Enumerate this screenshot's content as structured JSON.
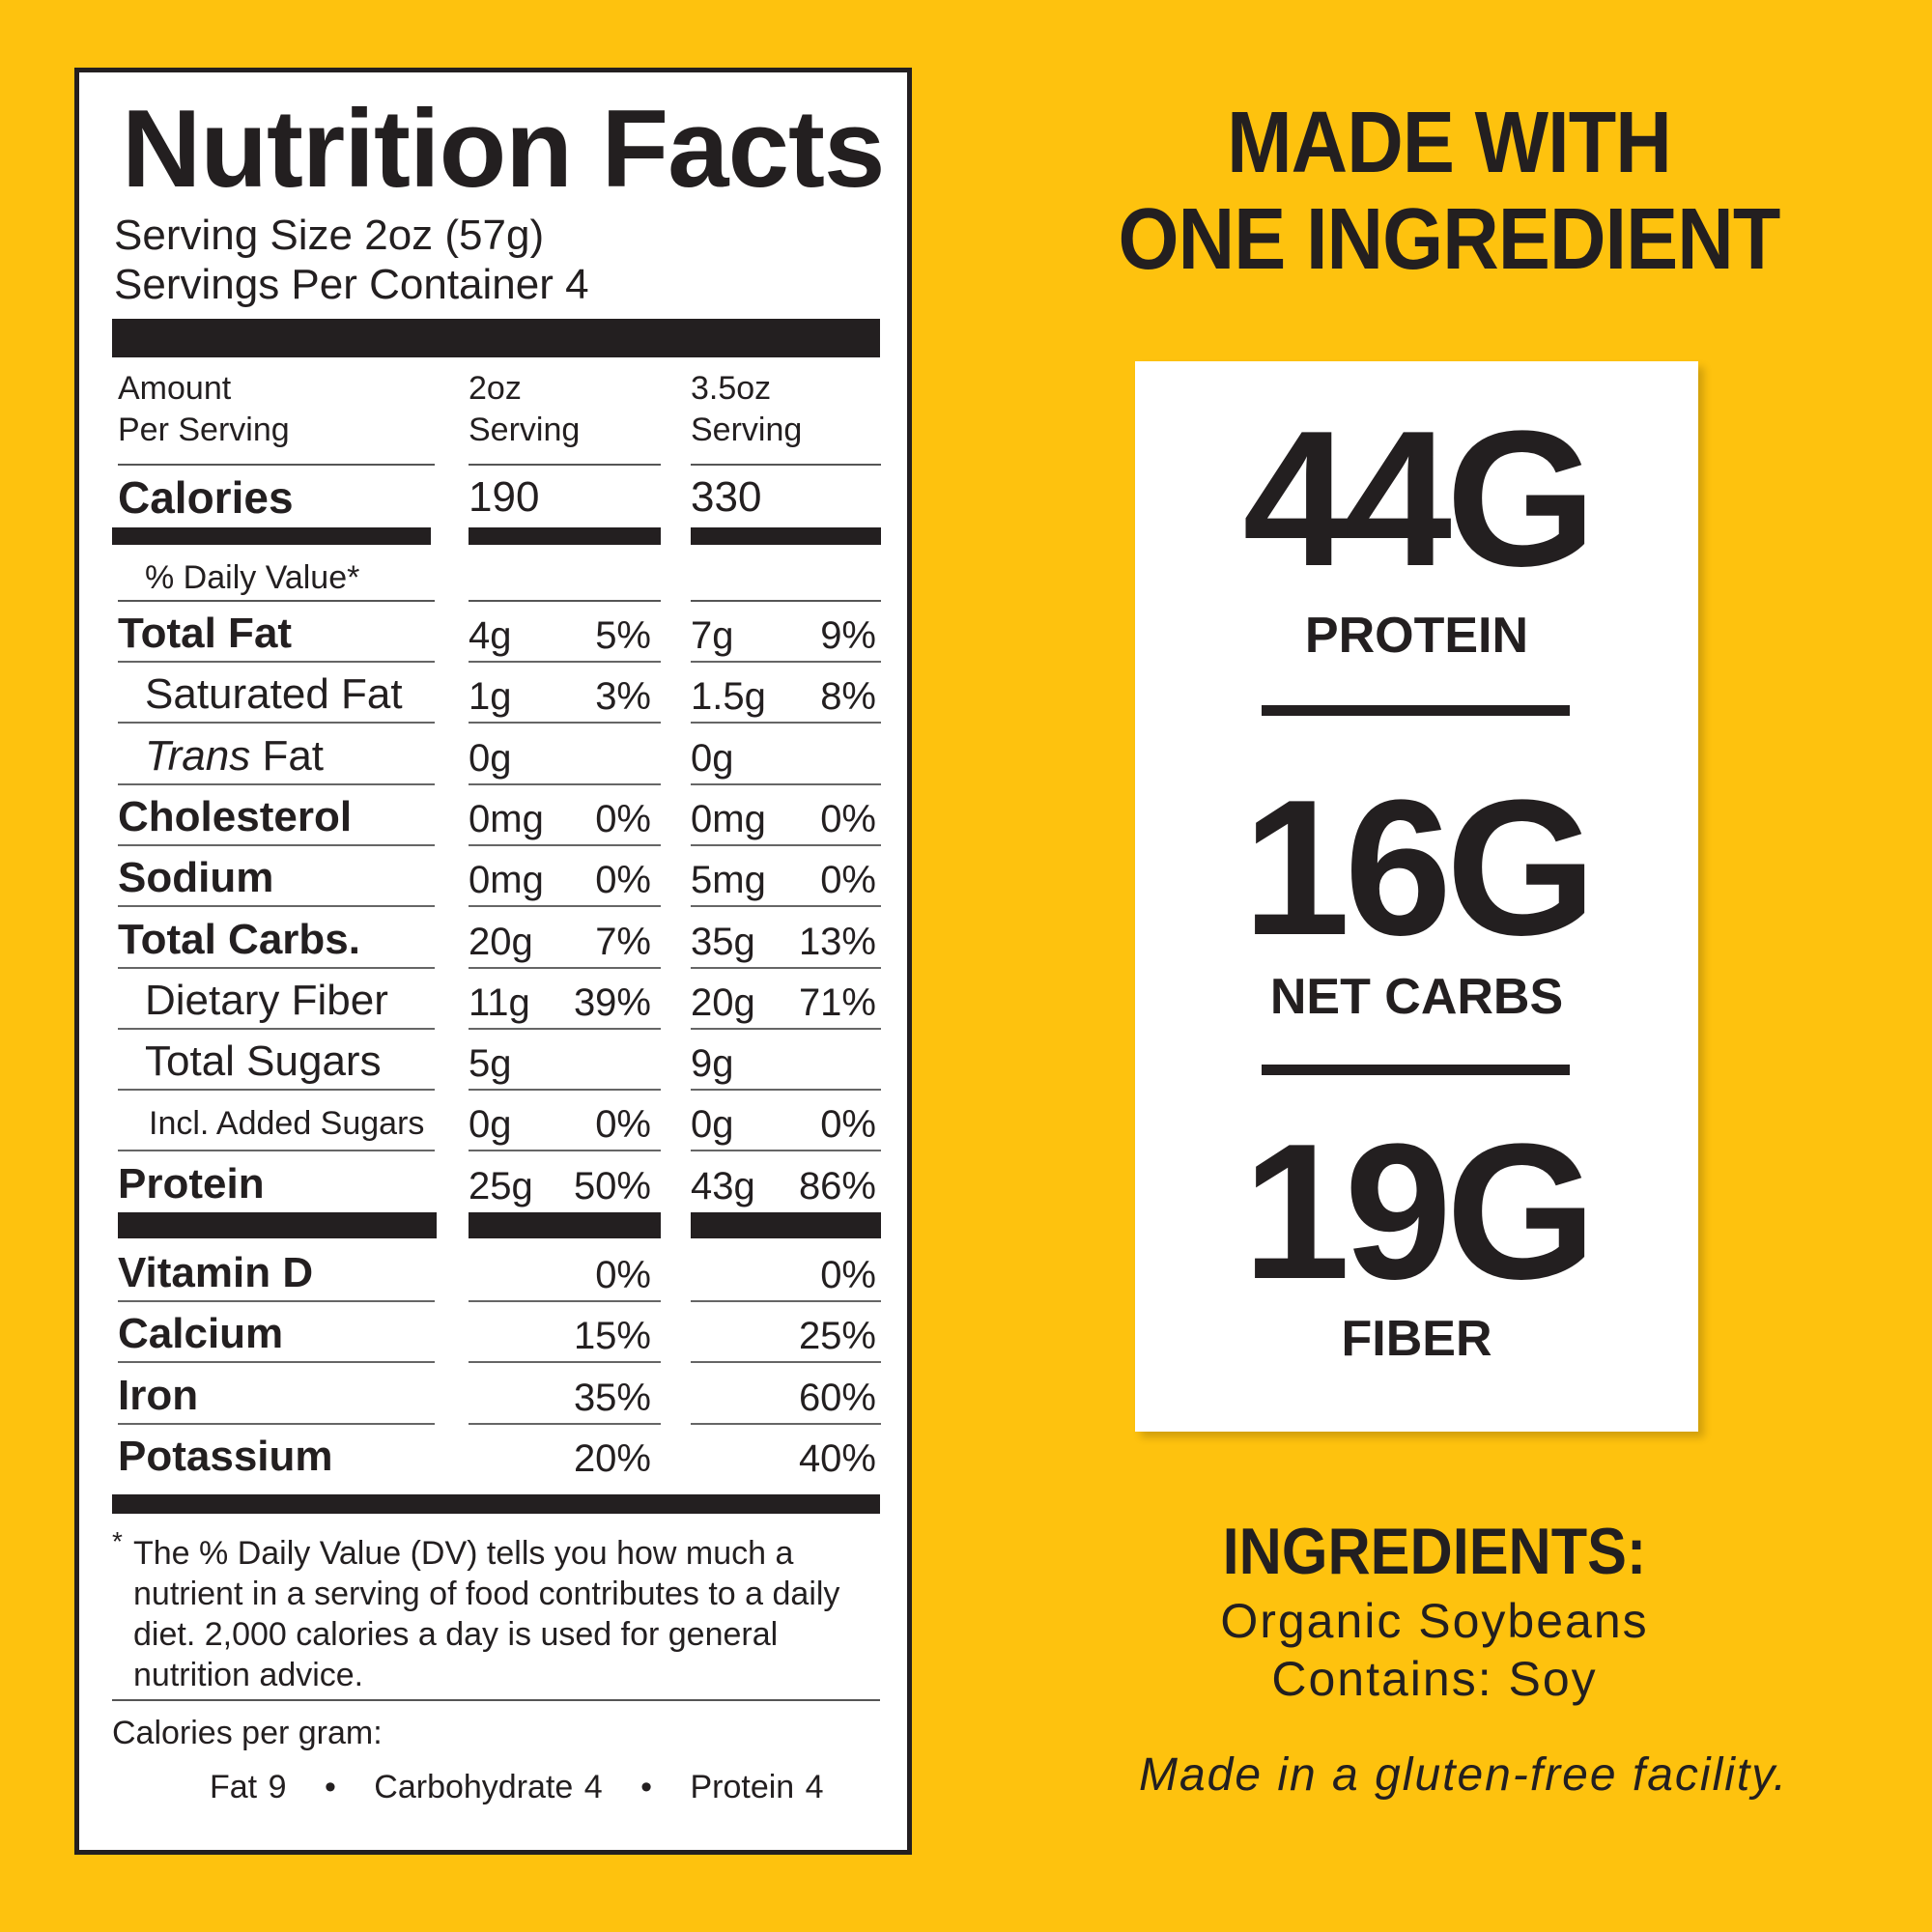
{
  "label": {
    "title": "Nutrition Facts",
    "serving_size": "Serving Size 2oz (57g)",
    "servings_per_container": "Servings Per Container 4",
    "header": {
      "col1_a": "Amount",
      "col1_b": "Per Serving",
      "col2_a": "2oz",
      "col2_b": "Serving",
      "col3_a": "3.5oz",
      "col3_b": "Serving"
    },
    "calories": {
      "label": "Calories",
      "v2": "190",
      "v3": "330"
    },
    "daily_value": "% Daily Value*",
    "rows": [
      {
        "label": "Total Fat",
        "bold": true,
        "indent": 0,
        "a2": "4g",
        "p2": "5%",
        "a3": "7g",
        "p3": "9%"
      },
      {
        "label": "Saturated Fat",
        "bold": false,
        "indent": 1,
        "a2": "1g",
        "p2": "3%",
        "a3": "1.5g",
        "p3": "8%"
      },
      {
        "label": "Trans Fat",
        "bold": false,
        "indent": 1,
        "italic_part": "Trans",
        "a2": "0g",
        "p2": "",
        "a3": "0g",
        "p3": ""
      },
      {
        "label": "Cholesterol",
        "bold": true,
        "indent": 0,
        "a2": "0mg",
        "p2": "0%",
        "a3": "0mg",
        "p3": "0%"
      },
      {
        "label": "Sodium",
        "bold": true,
        "indent": 0,
        "a2": "0mg",
        "p2": "0%",
        "a3": "5mg",
        "p3": "0%"
      },
      {
        "label": "Total Carbs.",
        "bold": true,
        "indent": 0,
        "a2": "20g",
        "p2": "7%",
        "a3": "35g",
        "p3": "13%"
      },
      {
        "label": "Dietary Fiber",
        "bold": false,
        "indent": 1,
        "a2": "11g",
        "p2": "39%",
        "a3": "20g",
        "p3": "71%"
      },
      {
        "label": "Total Sugars",
        "bold": false,
        "indent": 1,
        "a2": "5g",
        "p2": "",
        "a3": "9g",
        "p3": ""
      },
      {
        "label": "Incl. Added Sugars",
        "bold": false,
        "indent": 2,
        "a2": "0g",
        "p2": "0%",
        "a3": "0g",
        "p3": "0%"
      },
      {
        "label": "Protein",
        "bold": true,
        "indent": 0,
        "a2": "25g",
        "p2": "50%",
        "a3": "43g",
        "p3": "86%"
      }
    ],
    "vitamins": [
      {
        "label": "Vitamin D",
        "p2": "0%",
        "p3": "0%"
      },
      {
        "label": "Calcium",
        "p2": "15%",
        "p3": "25%"
      },
      {
        "label": "Iron",
        "p2": "35%",
        "p3": "60%"
      },
      {
        "label": "Potassium",
        "p2": "20%",
        "p3": "40%"
      }
    ],
    "footnote_star": "*",
    "footnote": [
      "The % Daily Value (DV) tells you how much a",
      "nutrient in a serving of food contributes to a daily",
      "diet. 2,000 calories a day is used for general",
      "nutrition advice."
    ],
    "calories_per_gram": "Calories per gram:",
    "cpg": {
      "fat": "Fat 9",
      "carb": "Carbohydrate 4",
      "protein": "Protein 4",
      "bullet": "•"
    }
  },
  "headline": [
    "MADE WITH",
    "ONE INGREDIENT"
  ],
  "highlights": [
    {
      "value": "44G",
      "label": "PROTEIN"
    },
    {
      "value": "16G",
      "label": "NET CARBS"
    },
    {
      "value": "19G",
      "label": "FIBER"
    }
  ],
  "ingredients": {
    "title": "INGREDIENTS:",
    "items": "Organic Soybeans",
    "allergens": "Contains: Soy",
    "facility": "Made in a gluten-free facility."
  },
  "colors": {
    "background": "#FEC20E",
    "ink": "#231f20",
    "panel": "#ffffff"
  }
}
